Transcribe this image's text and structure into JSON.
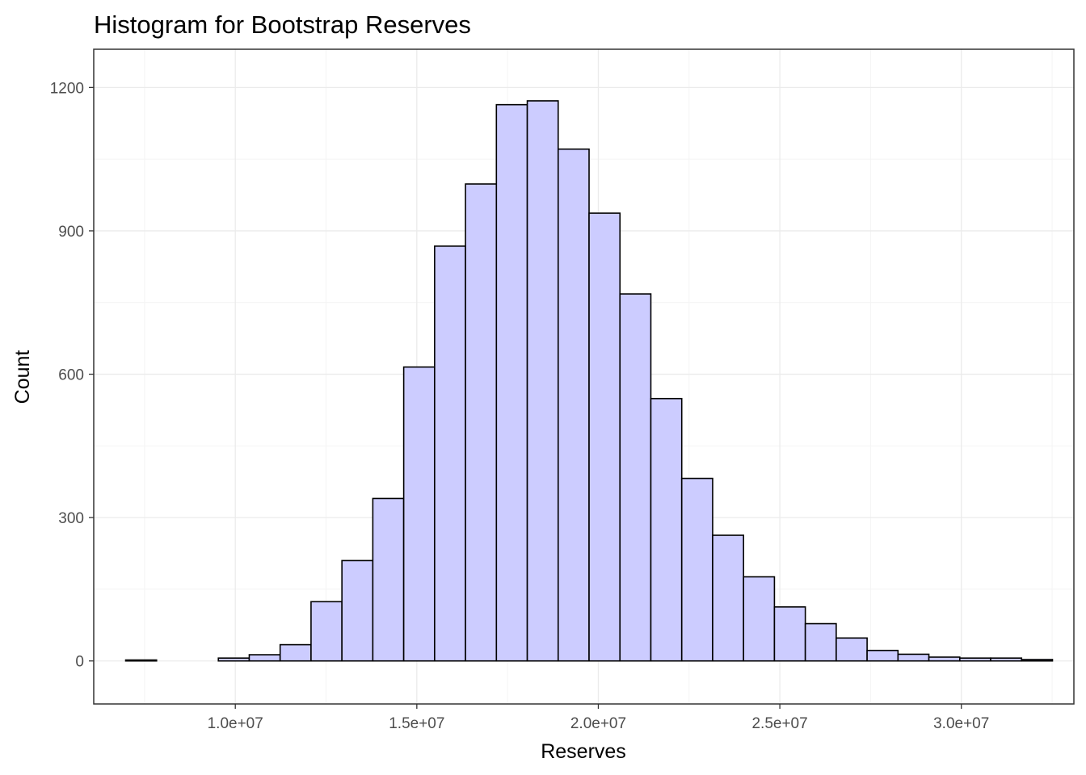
{
  "chart_data": {
    "type": "bar",
    "subtype": "histogram",
    "title": "Histogram for Bootstrap Reserves",
    "xlabel": "Reserves",
    "ylabel": "Count",
    "bin_width": 851000,
    "x_start": 6980000,
    "xlim": [
      6100000,
      33100000
    ],
    "ylim": [
      -90,
      1280
    ],
    "xticks": [
      10000000,
      15000000,
      20000000,
      25000000,
      30000000
    ],
    "xtick_labels": [
      "1.0e+07",
      "1.5e+07",
      "2.0e+07",
      "2.5e+07",
      "3.0e+07"
    ],
    "yticks": [
      0,
      300,
      600,
      900,
      1200
    ],
    "ytick_labels": [
      "0",
      "300",
      "600",
      "900",
      "1200"
    ],
    "counts": [
      2,
      0,
      0,
      6,
      13,
      34,
      124,
      210,
      340,
      615,
      868,
      998,
      1164,
      1172,
      1071,
      937,
      768,
      549,
      382,
      263,
      176,
      113,
      78,
      48,
      22,
      14,
      8,
      6,
      6,
      3
    ],
    "grid": true,
    "legend": "none",
    "colors": {
      "fill": "#CCCCFF",
      "outline": "#000000",
      "grid_major": "#EBEBEB",
      "grid_minor": "#F4F4F4",
      "panel_border": "#333333",
      "tick_text": "#4D4D4D"
    }
  }
}
